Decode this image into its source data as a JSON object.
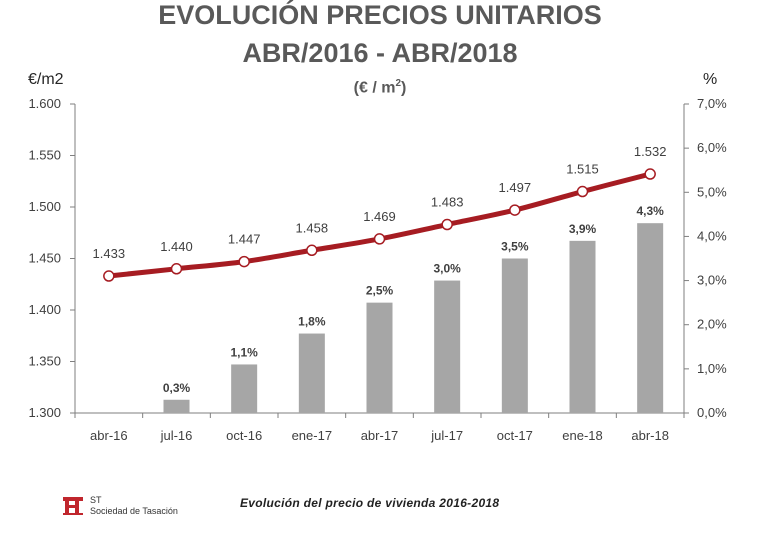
{
  "title_line1": "EVOLUCIÓN PRECIOS UNITARIOS",
  "title_line2": "ABR/2016 - ABR/2018",
  "unit_prefix": "(€ / m",
  "unit_sup": "2",
  "unit_suffix": ")",
  "footer": {
    "caption": "Evolución del precio de vivienda 2016-2018",
    "logo_line1": "ST",
    "logo_line2": "Sociedad de Tasación"
  },
  "colors": {
    "bar": "#a6a6a6",
    "line": "#a61c22",
    "marker_fill": "#ffffff",
    "text": "#404040",
    "logo": "#c0262d"
  },
  "chart_data": {
    "type": "bar+line",
    "categories": [
      "abr-16",
      "jul-16",
      "oct-16",
      "ene-17",
      "abr-17",
      "jul-17",
      "oct-17",
      "ene-18",
      "abr-18"
    ],
    "left_axis": {
      "label": "€/m2",
      "min": 1300,
      "max": 1600,
      "ticks": [
        "1.300",
        "1.350",
        "1.400",
        "1.450",
        "1.500",
        "1.550",
        "1.600"
      ]
    },
    "right_axis": {
      "label": "%",
      "min": 0,
      "max": 7,
      "ticks": [
        "0,0%",
        "1,0%",
        "2,0%",
        "3,0%",
        "4,0%",
        "5,0%",
        "6,0%",
        "7,0%"
      ]
    },
    "series": [
      {
        "type": "bar",
        "axis": "right",
        "values": [
          0,
          0.3,
          1.1,
          1.8,
          2.5,
          3.0,
          3.5,
          3.9,
          4.3
        ],
        "labels": [
          "",
          "0,3%",
          "1,1%",
          "1,8%",
          "2,5%",
          "3,0%",
          "3,5%",
          "3,9%",
          "4,3%"
        ]
      },
      {
        "type": "line",
        "axis": "left",
        "values": [
          1433,
          1440,
          1447,
          1458,
          1469,
          1483,
          1497,
          1515,
          1532
        ],
        "labels": [
          "1.433",
          "1.440",
          "1.447",
          "1.458",
          "1.469",
          "1.483",
          "1.497",
          "1.515",
          "1.532"
        ]
      }
    ],
    "grid": false
  }
}
